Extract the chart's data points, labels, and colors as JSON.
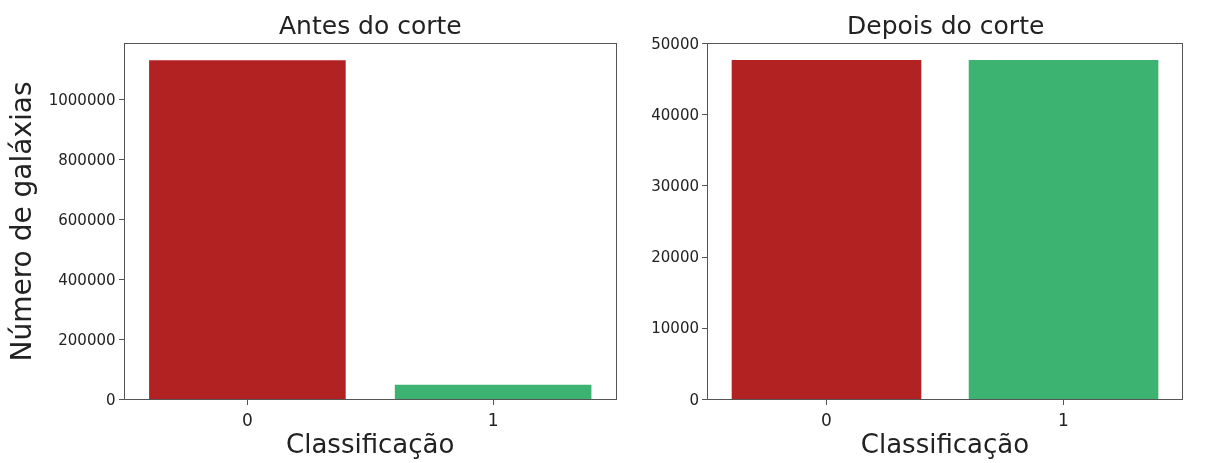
{
  "chart_data": [
    {
      "type": "bar",
      "title": "Antes do corte",
      "xlabel": "Classificação",
      "ylabel": "Número de galáxias",
      "categories": [
        "0",
        "1"
      ],
      "values": [
        1131000,
        48000
      ],
      "colors": [
        "#b22222",
        "#3cb371"
      ],
      "ylim": [
        0,
        1186000
      ],
      "yticks": [
        0,
        200000,
        400000,
        600000,
        800000,
        1000000
      ],
      "legend": false
    },
    {
      "type": "bar",
      "title": "Depois do corte",
      "xlabel": "Classificação",
      "categories": [
        "0",
        "1"
      ],
      "values": [
        47700,
        47700
      ],
      "colors": [
        "#b22222",
        "#3cb371"
      ],
      "ylim": [
        0,
        50000
      ],
      "yticks": [
        0,
        10000,
        20000,
        30000,
        40000,
        50000
      ],
      "legend": false
    }
  ]
}
